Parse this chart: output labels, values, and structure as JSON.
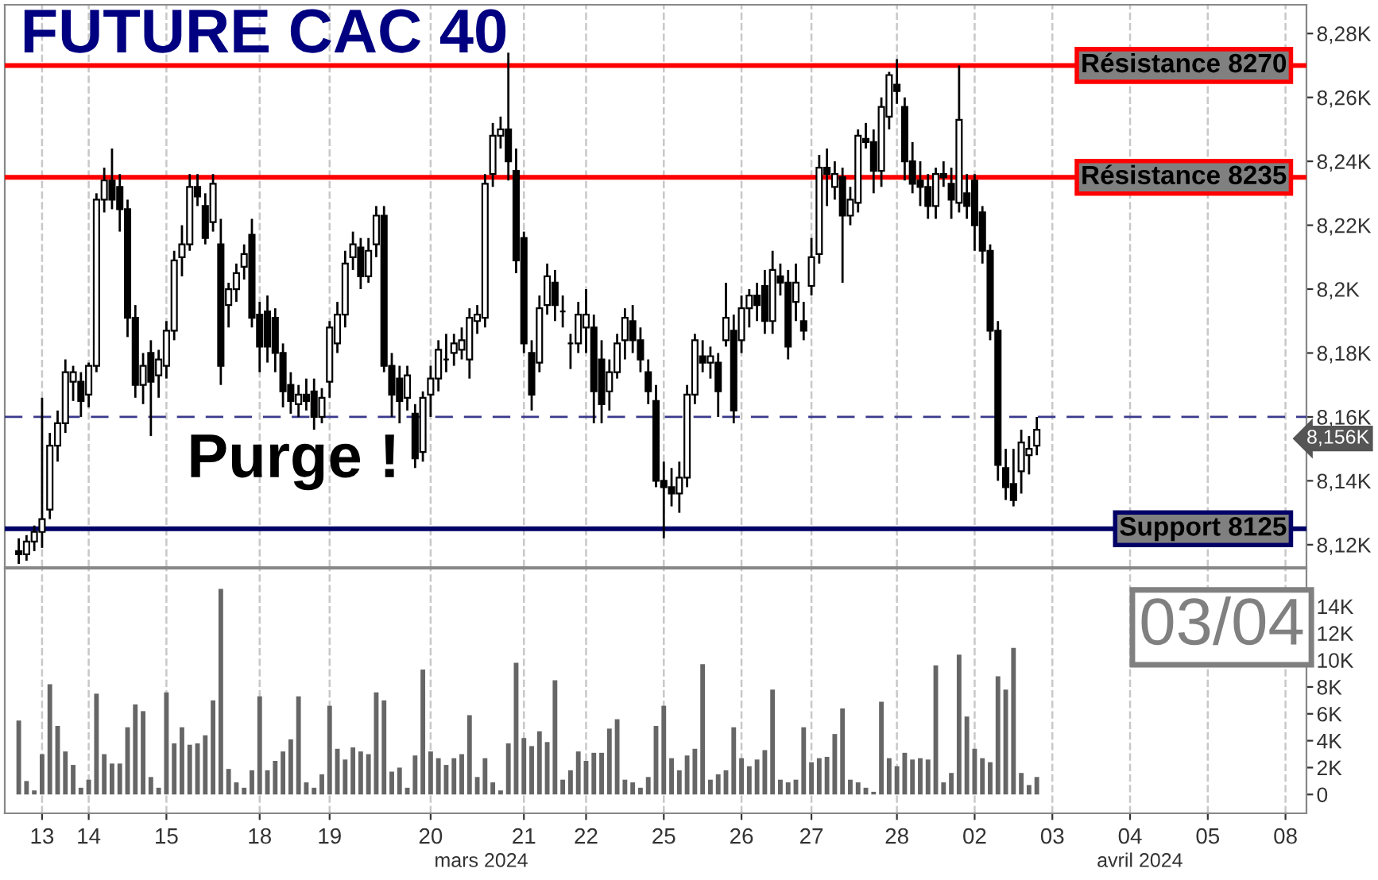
{
  "chart_data": [
    {
      "type": "candlestick",
      "title": "FUTURE CAC 40",
      "categories": [
        null,
        null,
        null,
        "13",
        null,
        null,
        null,
        null,
        null,
        "14",
        null,
        null,
        null,
        null,
        null,
        null,
        null,
        null,
        null,
        "15",
        null,
        null,
        null,
        null,
        null,
        null,
        null,
        null,
        null,
        null,
        null,
        "18",
        null,
        null,
        null,
        null,
        null,
        null,
        null,
        null,
        "19",
        null,
        null,
        null,
        null,
        null,
        null,
        null,
        null,
        null,
        null,
        null,
        null,
        "20",
        null,
        null,
        null,
        null,
        null,
        null,
        null,
        null,
        null,
        null,
        null,
        "21",
        null,
        null,
        null,
        null,
        null,
        null,
        null,
        "22",
        null,
        null,
        null,
        null,
        null,
        null,
        null,
        null,
        null,
        "25",
        null,
        null,
        null,
        null,
        null,
        null,
        null,
        null,
        null,
        "26",
        null,
        null,
        null,
        null,
        null,
        null,
        null,
        null,
        "27",
        null,
        null,
        null,
        null,
        null,
        null,
        null,
        null,
        null,
        null,
        "28",
        null,
        null,
        null,
        null,
        null,
        null,
        null,
        null,
        null,
        "02",
        null,
        null,
        null,
        null,
        null,
        null,
        null,
        null,
        null,
        "03",
        null,
        null,
        null,
        null,
        null,
        null,
        null,
        null,
        null,
        "04",
        null,
        null,
        null,
        null,
        null,
        null,
        null,
        null,
        null,
        "05",
        null,
        null,
        null,
        null,
        null,
        null,
        null,
        null,
        null,
        "08",
        null,
        null
      ],
      "ohlc": [
        [
          8118,
          8122,
          8114,
          8117
        ],
        [
          8117,
          8123,
          8115,
          8121
        ],
        [
          8121,
          8126,
          8118,
          8124
        ],
        [
          8124,
          8166,
          8119,
          8128
        ],
        [
          8131,
          8155,
          8128,
          8151
        ],
        [
          8151,
          8162,
          8146,
          8158
        ],
        [
          8158,
          8178,
          8155,
          8174
        ],
        [
          8171,
          8176,
          8165,
          8174
        ],
        [
          8171,
          8174,
          8160,
          8165
        ],
        [
          8167,
          8177,
          8163,
          8176
        ],
        [
          8176,
          8230,
          8174,
          8228
        ],
        [
          8228,
          8238,
          8224,
          8234
        ],
        [
          8234,
          8244,
          8225,
          8228
        ],
        [
          8232,
          8236,
          8218,
          8225
        ],
        [
          8225,
          8228,
          8185,
          8191
        ],
        [
          8191,
          8195,
          8166,
          8170
        ],
        [
          8170,
          8180,
          8164,
          8176
        ],
        [
          8180,
          8184,
          8154,
          8171
        ],
        [
          8173,
          8181,
          8166,
          8178
        ],
        [
          8176,
          8190,
          8172,
          8187
        ],
        [
          8187,
          8212,
          8184,
          8209
        ],
        [
          8210,
          8220,
          8204,
          8214
        ],
        [
          8214,
          8236,
          8212,
          8232
        ],
        [
          8232,
          8236,
          8226,
          8229
        ],
        [
          8226,
          8230,
          8214,
          8216
        ],
        [
          8221,
          8236,
          8218,
          8233
        ],
        [
          8214,
          8222,
          8170,
          8176
        ],
        [
          8195,
          8202,
          8188,
          8200
        ],
        [
          8200,
          8208,
          8196,
          8205
        ],
        [
          8207,
          8214,
          8203,
          8211
        ],
        [
          8217,
          8222,
          8188,
          8191
        ],
        [
          8192,
          8196,
          8174,
          8182
        ],
        [
          8193,
          8198,
          8177,
          8182
        ],
        [
          8191,
          8194,
          8174,
          8180
        ],
        [
          8180,
          8183,
          8163,
          8168
        ],
        [
          8170,
          8174,
          8161,
          8165
        ],
        [
          8164,
          8170,
          8160,
          8167
        ],
        [
          8167,
          8172,
          8162,
          8165
        ],
        [
          8168,
          8172,
          8156,
          8160
        ],
        [
          8160,
          8169,
          8158,
          8166
        ],
        [
          8171,
          8190,
          8166,
          8188
        ],
        [
          8183,
          8196,
          8180,
          8192
        ],
        [
          8192,
          8212,
          8188,
          8208
        ],
        [
          8210,
          8218,
          8206,
          8214
        ],
        [
          8213,
          8216,
          8200,
          8204
        ],
        [
          8204,
          8216,
          8202,
          8212
        ],
        [
          8214,
          8226,
          8210,
          8223
        ],
        [
          8223,
          8226,
          8174,
          8176
        ],
        [
          8176,
          8180,
          8160,
          8167
        ],
        [
          8172,
          8176,
          8158,
          8165
        ],
        [
          8166,
          8176,
          8162,
          8173
        ],
        [
          8161,
          8164,
          8144,
          8147
        ],
        [
          8149,
          8168,
          8146,
          8166
        ],
        [
          8167,
          8176,
          8160,
          8172
        ],
        [
          8172,
          8184,
          8168,
          8181
        ],
        [
          8178,
          8186,
          8174,
          8178
        ],
        [
          8180,
          8186,
          8176,
          8183
        ],
        [
          8181,
          8188,
          8178,
          8184
        ],
        [
          8178,
          8194,
          8172,
          8191
        ],
        [
          8190,
          8195,
          8186,
          8192
        ],
        [
          8191,
          8236,
          8188,
          8233
        ],
        [
          8236,
          8252,
          8232,
          8248
        ],
        [
          8248,
          8254,
          8244,
          8250
        ],
        [
          8250,
          8274,
          8234,
          8240
        ],
        [
          8237,
          8244,
          8205,
          8209
        ],
        [
          8216,
          8218,
          8180,
          8183
        ],
        [
          8180,
          8184,
          8162,
          8167
        ],
        [
          8177,
          8198,
          8174,
          8194
        ],
        [
          8195,
          8208,
          8192,
          8204
        ],
        [
          8202,
          8206,
          8190,
          8195
        ],
        [
          8193,
          8198,
          8188,
          8193
        ],
        [
          8183,
          8186,
          8175,
          8183
        ],
        [
          8183,
          8196,
          8180,
          8192
        ],
        [
          8188,
          8200,
          8180,
          8192
        ],
        [
          8188,
          8192,
          8158,
          8168
        ],
        [
          8178,
          8184,
          8158,
          8164
        ],
        [
          8168,
          8178,
          8162,
          8174
        ],
        [
          8174,
          8186,
          8172,
          8183
        ],
        [
          8184,
          8194,
          8178,
          8191
        ],
        [
          8190,
          8195,
          8180,
          8184
        ],
        [
          8184,
          8188,
          8174,
          8178
        ],
        [
          8174,
          8178,
          8164,
          8168
        ],
        [
          8165,
          8170,
          8138,
          8140
        ],
        [
          8140,
          8146,
          8122,
          8138
        ],
        [
          8138,
          8144,
          8132,
          8136
        ],
        [
          8136,
          8146,
          8130,
          8141
        ],
        [
          8141,
          8170,
          8138,
          8167
        ],
        [
          8167,
          8186,
          8164,
          8184
        ],
        [
          8179,
          8184,
          8174,
          8177
        ],
        [
          8177,
          8182,
          8172,
          8179
        ],
        [
          8177,
          8180,
          8160,
          8168
        ],
        [
          8184,
          8202,
          8182,
          8191
        ],
        [
          8187,
          8192,
          8158,
          8162
        ],
        [
          8184,
          8198,
          8180,
          8194
        ],
        [
          8194,
          8200,
          8188,
          8198
        ],
        [
          8198,
          8202,
          8190,
          8195
        ],
        [
          8201,
          8206,
          8186,
          8190
        ],
        [
          8190,
          8212,
          8186,
          8206
        ],
        [
          8204,
          8208,
          8198,
          8202
        ],
        [
          8202,
          8206,
          8178,
          8182
        ],
        [
          8196,
          8208,
          8190,
          8202
        ],
        [
          8190,
          8196,
          8184,
          8187
        ],
        [
          8201,
          8216,
          8198,
          8210
        ],
        [
          8211,
          8242,
          8208,
          8238
        ],
        [
          8238,
          8244,
          8226,
          8236
        ],
        [
          8232,
          8240,
          8228,
          8236
        ],
        [
          8235,
          8238,
          8202,
          8223
        ],
        [
          8223,
          8232,
          8220,
          8228
        ],
        [
          8227,
          8250,
          8224,
          8248
        ],
        [
          8247,
          8252,
          8244,
          8246
        ],
        [
          8246,
          8250,
          8230,
          8237
        ],
        [
          8237,
          8260,
          8232,
          8257
        ],
        [
          8254,
          8268,
          8250,
          8267
        ],
        [
          8264,
          8272,
          8258,
          8262
        ],
        [
          8257,
          8260,
          8234,
          8240
        ],
        [
          8240,
          8246,
          8230,
          8233
        ],
        [
          8234,
          8240,
          8226,
          8232
        ],
        [
          8232,
          8236,
          8222,
          8226
        ],
        [
          8226,
          8238,
          8222,
          8236
        ],
        [
          8236,
          8240,
          8232,
          8235
        ],
        [
          8233,
          8238,
          8222,
          8228
        ],
        [
          8227,
          8270,
          8224,
          8253
        ],
        [
          8230,
          8236,
          8222,
          8226
        ],
        [
          8234,
          8236,
          8212,
          8220
        ],
        [
          8224,
          8226,
          8208,
          8212
        ],
        [
          8212,
          8214,
          8184,
          8187
        ],
        [
          8187,
          8190,
          8140,
          8145
        ],
        [
          8144,
          8150,
          8134,
          8138
        ],
        [
          8139,
          8150,
          8132,
          8134
        ],
        [
          8143,
          8156,
          8136,
          8152
        ],
        [
          8148,
          8154,
          8142,
          8150
        ],
        [
          8151,
          8160,
          8148,
          8156
        ],
        null,
        null,
        null,
        null,
        null,
        null,
        null,
        null,
        null,
        null,
        null,
        null,
        null,
        null,
        null,
        null,
        null,
        null,
        null,
        null,
        null,
        null,
        null,
        null,
        null,
        null,
        null,
        null,
        null,
        null,
        null,
        null,
        null,
        null
      ],
      "ylim": [
        8113,
        8289
      ],
      "yticks": [
        {
          "value": 8120,
          "label": "8,12K"
        },
        {
          "value": 8140,
          "label": "8,14K"
        },
        {
          "value": 8160,
          "label": "8,16K"
        },
        {
          "value": 8180,
          "label": "8,18K"
        },
        {
          "value": 8200,
          "label": "8,2K"
        },
        {
          "value": 8220,
          "label": "8,22K"
        },
        {
          "value": 8240,
          "label": "8,24K"
        },
        {
          "value": 8260,
          "label": "8,26K"
        },
        {
          "value": 8280,
          "label": "8,28K"
        }
      ],
      "tick_labels": "y",
      "grid": "x",
      "ref_lines": [
        {
          "axis": "y",
          "value": 8270,
          "label": "Résistance 8270",
          "color": "#ff0000",
          "line_style": "solid"
        },
        {
          "axis": "y",
          "value": 8235,
          "label": "Résistance 8235",
          "color": "#ff0000",
          "line_style": "solid"
        },
        {
          "axis": "y",
          "value": 8125,
          "label": "Support 8125",
          "color": "#000066",
          "line_style": "solid"
        },
        {
          "axis": "y",
          "value": 8160,
          "color": "#3a3a8c",
          "line_style": "dashed"
        }
      ],
      "annotations": [
        "Purge !",
        "8,156K"
      ]
    },
    {
      "type": "bar",
      "color": "#666666",
      "categories": [
        null,
        null,
        null,
        "13",
        null,
        null,
        null,
        null,
        null,
        "14",
        null,
        null,
        null,
        null,
        null,
        null,
        null,
        null,
        null,
        "15",
        null,
        null,
        null,
        null,
        null,
        null,
        null,
        null,
        null,
        null,
        null,
        "18",
        null,
        null,
        null,
        null,
        null,
        null,
        null,
        null,
        "19",
        null,
        null,
        null,
        null,
        null,
        null,
        null,
        null,
        null,
        null,
        null,
        null,
        "20",
        null,
        null,
        null,
        null,
        null,
        null,
        null,
        null,
        null,
        null,
        null,
        "21",
        null,
        null,
        null,
        null,
        null,
        null,
        null,
        "22",
        null,
        null,
        null,
        null,
        null,
        null,
        null,
        null,
        null,
        "25",
        null,
        null,
        null,
        null,
        null,
        null,
        null,
        null,
        null,
        "26",
        null,
        null,
        null,
        null,
        null,
        null,
        null,
        null,
        "27",
        null,
        null,
        null,
        null,
        null,
        null,
        null,
        null,
        null,
        null,
        "28",
        null,
        null,
        null,
        null,
        null,
        null,
        null,
        null,
        null,
        "02",
        null,
        null,
        null,
        null,
        null,
        null,
        null,
        null,
        null,
        "03",
        null,
        null,
        null,
        null,
        null,
        null,
        null,
        null,
        null,
        "04",
        null,
        null,
        null,
        null,
        null,
        null,
        null,
        null,
        null,
        "05",
        null,
        null,
        null,
        null,
        null,
        null,
        null,
        null,
        null,
        "08",
        null,
        null
      ],
      "values": [
        5500,
        1000,
        300,
        3000,
        8200,
        5100,
        3200,
        2200,
        500,
        1100,
        7500,
        3000,
        2300,
        2300,
        5000,
        6700,
        6200,
        1300,
        500,
        7600,
        3800,
        5000,
        3700,
        3800,
        4400,
        7000,
        15300,
        1900,
        900,
        500,
        1800,
        7300,
        1800,
        2500,
        3200,
        4100,
        7300,
        900,
        500,
        1500,
        6600,
        3400,
        2600,
        3500,
        3200,
        3000,
        7600,
        7000,
        1700,
        2000,
        500,
        2900,
        9300,
        3200,
        2700,
        2200,
        2700,
        3000,
        5900,
        1300,
        2700,
        900,
        300,
        3800,
        9800,
        4200,
        3600,
        4700,
        3900,
        8500,
        1100,
        1800,
        3200,
        2500,
        3100,
        3100,
        4900,
        5600,
        1100,
        900,
        500,
        1300,
        5100,
        6600,
        2700,
        1800,
        2900,
        3400,
        9700,
        1100,
        1500,
        1800,
        5000,
        2700,
        2100,
        2600,
        3300,
        7800,
        1100,
        900,
        1100,
        5000,
        2400,
        2700,
        2800,
        4500,
        6400,
        1100,
        900,
        500,
        200,
        6900,
        2700,
        2100,
        3100,
        2600,
        2700,
        2600,
        9600,
        900,
        1600,
        10400,
        5800,
        3400,
        2700,
        2400,
        8800,
        7800,
        10900,
        1600,
        700,
        1300,
        null,
        null,
        null,
        null,
        null,
        null,
        null,
        null,
        null,
        null,
        null,
        null,
        null,
        null,
        null,
        null,
        null,
        null,
        null,
        null,
        null,
        null,
        null,
        null,
        null,
        null,
        null,
        null,
        null,
        null,
        null,
        null,
        null,
        null
      ],
      "ylim": [
        -1400,
        16800
      ],
      "yticks": [
        0,
        {
          "value": 2000,
          "label": "2K"
        },
        {
          "value": 4000,
          "label": "4K"
        },
        {
          "value": 6000,
          "label": "6K"
        },
        {
          "value": 8000,
          "label": "8K"
        },
        {
          "value": 10000,
          "label": "10K"
        },
        {
          "value": 12000,
          "label": "12K"
        },
        {
          "value": 14000,
          "label": "14K"
        }
      ],
      "grid": "x",
      "annotations": [
        "03/04",
        "mars 2024",
        "avril 2024"
      ]
    }
  ]
}
